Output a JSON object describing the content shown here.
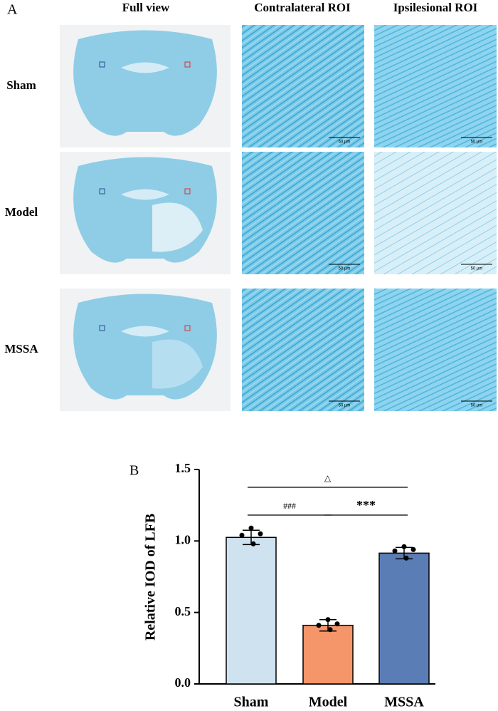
{
  "panel_a": {
    "label": "A",
    "columns": [
      "Full view",
      "Contralateral ROI",
      "Ipsilesional ROI"
    ],
    "rows": [
      "Sham",
      "Model",
      "MSSA"
    ],
    "scale_bar": "50 µm"
  },
  "chart_data": {
    "type": "bar",
    "panel_label": "B",
    "ylabel": "Relative IOD of LFB",
    "categories": [
      "Sham",
      "Model",
      "MSSA"
    ],
    "values": [
      1.025,
      0.41,
      0.915
    ],
    "errors": [
      0.05,
      0.04,
      0.04
    ],
    "points": [
      [
        1.09,
        1.04,
        1.05,
        0.98
      ],
      [
        0.45,
        0.41,
        0.42,
        0.38
      ],
      [
        0.96,
        0.93,
        0.94,
        0.88
      ]
    ],
    "colors": [
      "#cfe2f0",
      "#f4956a",
      "#5b7db5"
    ],
    "ylim": [
      0,
      1.5
    ],
    "yticks": [
      {
        "value": 0,
        "label": "0.0"
      },
      0.5,
      {
        "value": 1,
        "label": "1.0"
      },
      1.5
    ],
    "annotations": [
      "###",
      "***",
      "△"
    ]
  }
}
